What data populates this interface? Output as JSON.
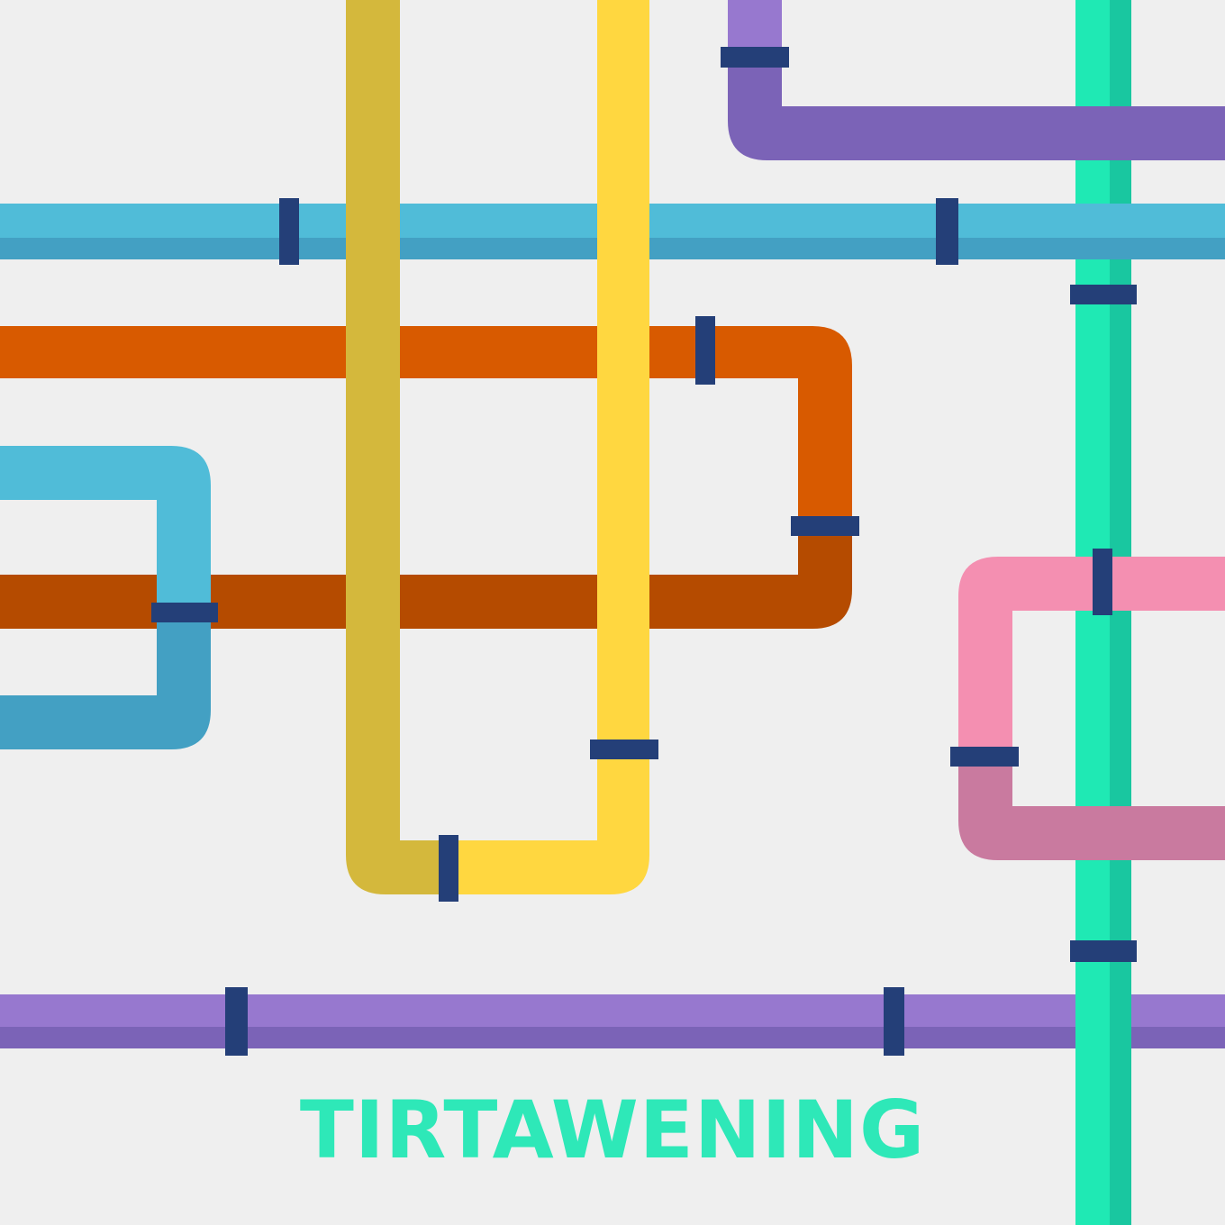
{
  "brand": {
    "name": "TIRTAWENING",
    "color": "#2ee8b8"
  },
  "palette": {
    "background": "#efefef",
    "teal_light": "#1fe9b4",
    "teal_dark": "#19c7a0",
    "purple_light": "#9778cf",
    "purple_dark": "#7b63b7",
    "blue_light": "#50bcd8",
    "blue_dark": "#43a0c3",
    "orange_light": "#d85a00",
    "orange_dark": "#b54b00",
    "mustard": "#d4b83c",
    "yellow": "#ffd740",
    "pink_light": "#f48fb1",
    "pink_dark": "#c97a9f",
    "clamp": "#243f78",
    "clamp_dark": "#1e3568"
  },
  "illustration": {
    "pipes": [
      "teal-vertical-pipe",
      "purple-top-pipe",
      "blue-horizontal-pipe",
      "mustard-u-pipe",
      "yellow-u-pipe",
      "orange-loop-pipe",
      "blue-bend-pipe",
      "pink-loop-pipe",
      "purple-bottom-pipe"
    ]
  }
}
